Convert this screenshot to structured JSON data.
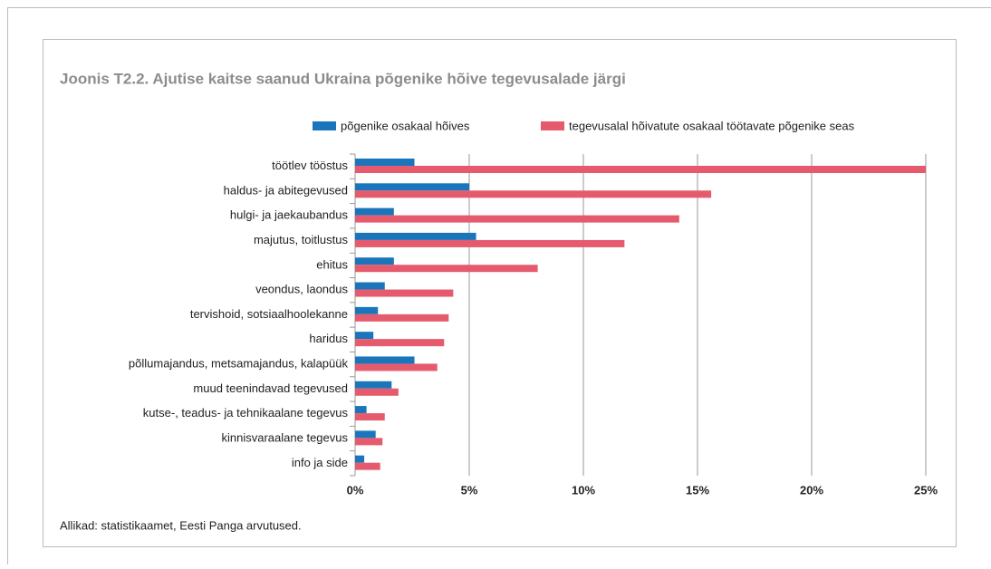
{
  "chart_data": {
    "type": "bar",
    "orientation": "horizontal",
    "title": "Joonis T2.2. Ajutise kaitse saanud Ukraina põgenike hõive tegevusalade järgi",
    "categories": [
      "töötlev tööstus",
      "haldus- ja abitegevused",
      "hulgi- ja jaekaubandus",
      "majutus, toitlustus",
      "ehitus",
      "veondus, laondus",
      "tervishoid, sotsiaalhoolekanne",
      "haridus",
      "põllumajandus, metsamajandus, kalapüük",
      "muud teenindavad tegevused",
      "kutse-, teadus- ja tehnikaalane tegevus",
      "kinnisvaraalane tegevus",
      "info ja side"
    ],
    "series": [
      {
        "name": "põgenike osakaal hõives",
        "color": "#1a75bb",
        "values": [
          2.6,
          5.0,
          1.7,
          5.3,
          1.7,
          1.3,
          1.0,
          0.8,
          2.6,
          1.6,
          0.5,
          0.9,
          0.4
        ]
      },
      {
        "name": "tegevusalal hõivatute osakaal töötavate põgenike seas",
        "color": "#e55b6d",
        "values": [
          25.0,
          15.6,
          14.2,
          11.8,
          8.0,
          4.3,
          4.1,
          3.9,
          3.6,
          1.9,
          1.3,
          1.2,
          1.1
        ]
      }
    ],
    "xlim": [
      0,
      25
    ],
    "xticks": [
      {
        "value": 0,
        "label": "0%"
      },
      {
        "value": 5,
        "label": "5%"
      },
      {
        "value": 10,
        "label": "10%"
      },
      {
        "value": 15,
        "label": "15%"
      },
      {
        "value": 20,
        "label": "20%"
      },
      {
        "value": 25,
        "label": "25%"
      }
    ],
    "grid": true,
    "legend": "top",
    "source": "Allikad: statistikaamet, Eesti Panga arvutused."
  }
}
